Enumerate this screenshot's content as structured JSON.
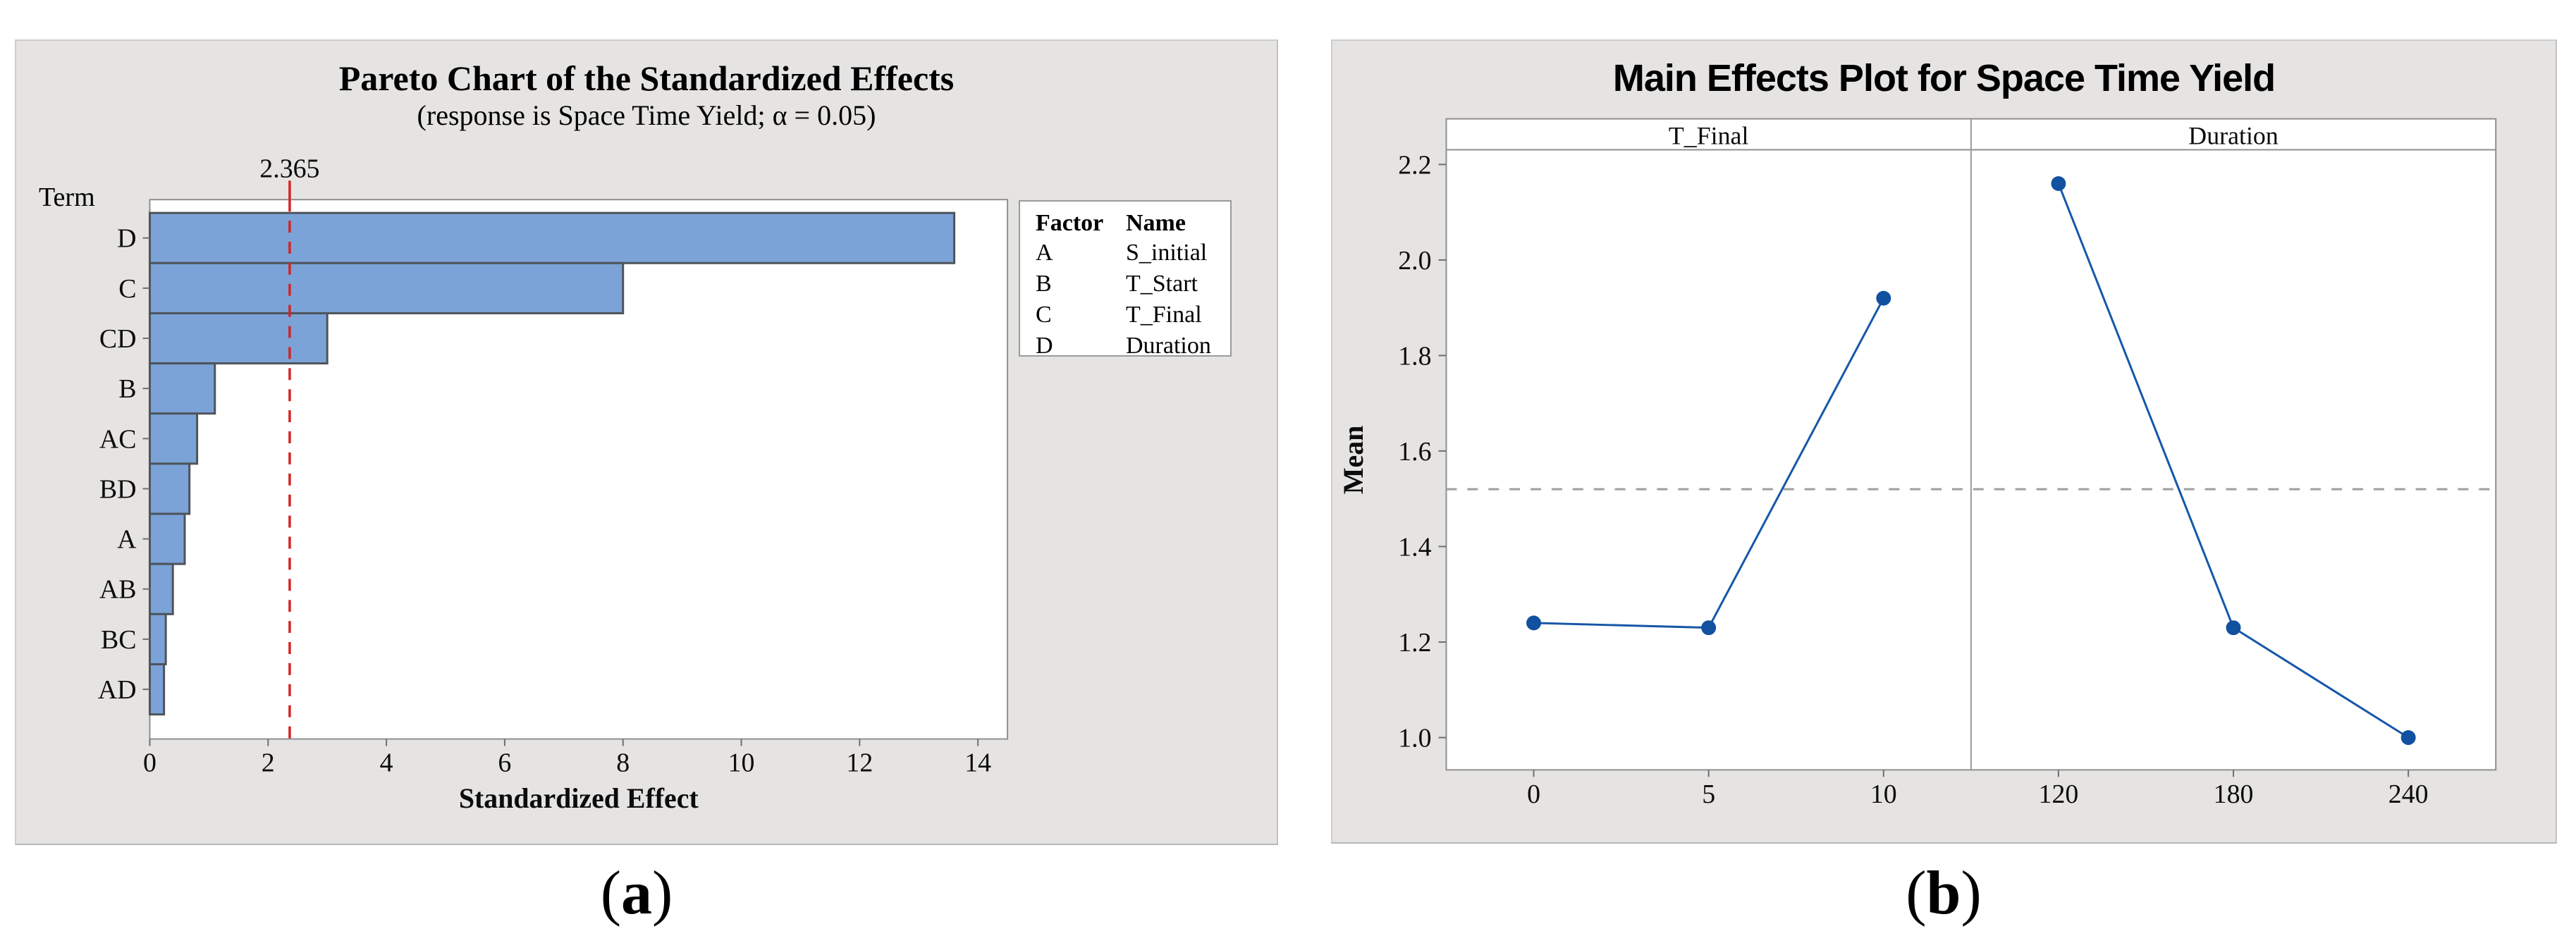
{
  "chart_data": [
    {
      "id": "a",
      "type": "bar",
      "orientation": "horizontal",
      "title": "Pareto Chart of the Standardized Effects",
      "subtitle": "(response is Space Time Yield; α = 0.05)",
      "ylabel": "Term",
      "xlabel": "Standardized Effect",
      "categories": [
        "D",
        "C",
        "CD",
        "B",
        "AC",
        "BD",
        "A",
        "AB",
        "BC",
        "AD"
      ],
      "values": [
        13.6,
        8.0,
        3.0,
        1.1,
        0.8,
        0.67,
        0.59,
        0.39,
        0.27,
        0.24
      ],
      "xticks": [
        0,
        2,
        4,
        6,
        8,
        10,
        12,
        14
      ],
      "xlim": [
        0,
        14.5
      ],
      "grid": false,
      "reference_line": 2.365,
      "reference_label": "2.365",
      "legend": {
        "headers": [
          "Factor",
          "Name"
        ],
        "rows": [
          [
            "A",
            "S_initial"
          ],
          [
            "B",
            "T_Start"
          ],
          [
            "C",
            "T_Final"
          ],
          [
            "D",
            "Duration"
          ]
        ]
      },
      "colors": {
        "bar_fill": "#7ba3d7",
        "bar_border": "#4e545b",
        "reference": "#d42323",
        "reference_label": "#8b2525",
        "plot_border": "#8f8f8f",
        "tick": "#6f6f6f"
      }
    },
    {
      "id": "b",
      "type": "line",
      "title": "Main Effects Plot for Space Time Yield",
      "ylabel": "Mean",
      "yticks": [
        2.2,
        2.0,
        1.8,
        1.6,
        1.4,
        1.2,
        1.0
      ],
      "ylim": [
        0.93,
        2.23
      ],
      "grid": false,
      "reference_line": 1.52,
      "panels": [
        {
          "label": "T_Final",
          "categories": [
            "0",
            "5",
            "10"
          ],
          "values": [
            1.24,
            1.23,
            1.92
          ]
        },
        {
          "label": "Duration",
          "categories": [
            "120",
            "180",
            "240"
          ],
          "values": [
            2.16,
            1.23,
            1.0
          ]
        }
      ],
      "colors": {
        "line": "#1557a8",
        "marker": "#11519f",
        "reference": "#9e9e9e",
        "plot_border": "#8f8f8f",
        "tick": "#6f6f6f"
      }
    }
  ],
  "captions": {
    "a": {
      "open": "(",
      "letter": "a",
      "close": ")"
    },
    "b": {
      "open": "(",
      "letter": "b",
      "close": ")"
    }
  }
}
